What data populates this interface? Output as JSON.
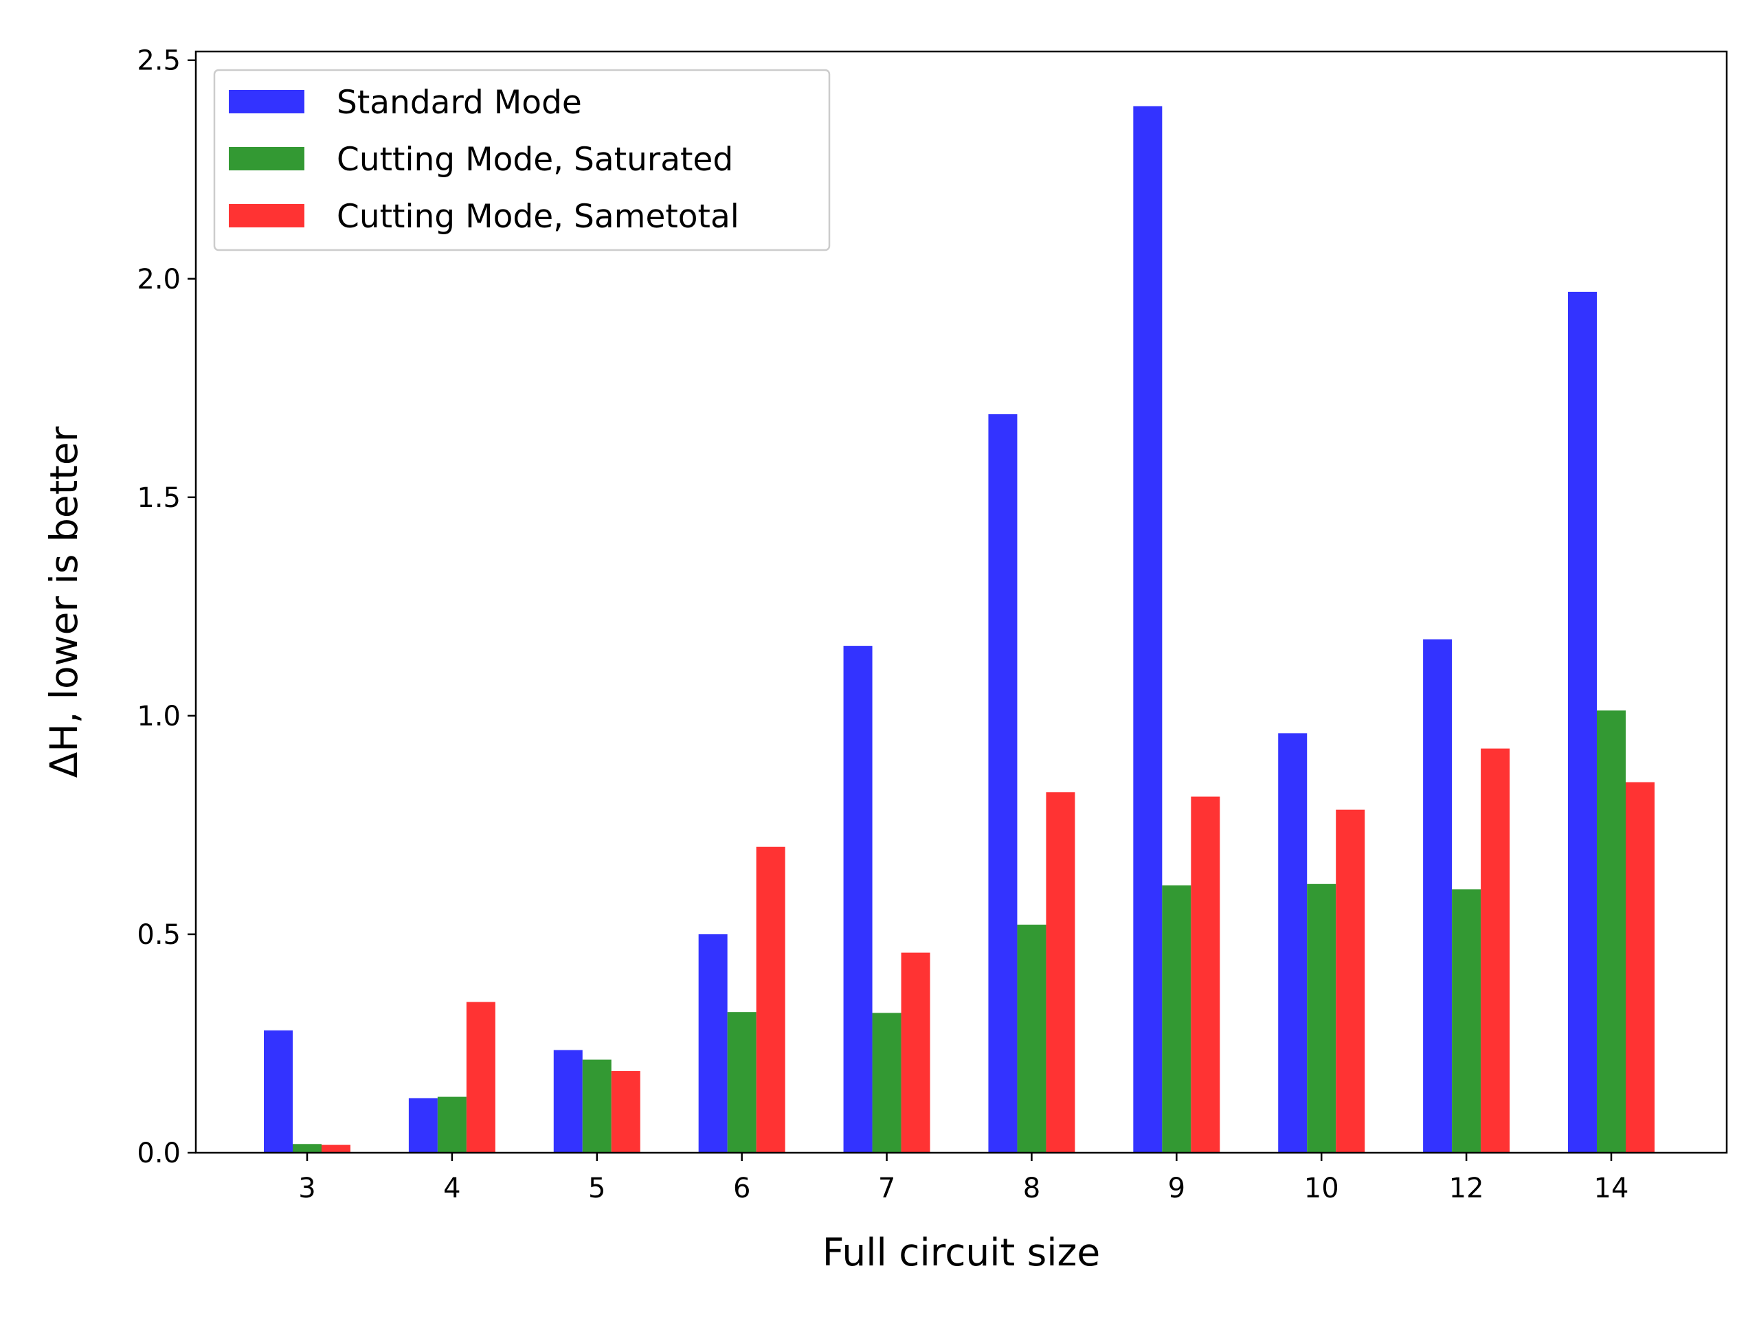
{
  "chart_data": {
    "type": "bar",
    "categories": [
      "3",
      "4",
      "5",
      "6",
      "7",
      "8",
      "9",
      "10",
      "12",
      "14"
    ],
    "series": [
      {
        "name": "Standard Mode",
        "color": "#3333ff",
        "values": [
          0.28,
          0.125,
          0.235,
          0.5,
          1.16,
          1.69,
          2.395,
          0.96,
          1.175,
          1.97
        ]
      },
      {
        "name": "Cutting Mode, Saturated",
        "color": "#339933",
        "values": [
          0.02,
          0.128,
          0.213,
          0.322,
          0.32,
          0.522,
          0.612,
          0.615,
          0.603,
          1.012
        ]
      },
      {
        "name": "Cutting Mode, Sametotal",
        "color": "#ff3333",
        "values": [
          0.018,
          0.345,
          0.187,
          0.7,
          0.458,
          0.825,
          0.815,
          0.785,
          0.925,
          0.848
        ]
      }
    ],
    "xlabel": "Full circuit size",
    "ylabel": "ΔH, lower is better",
    "ylim": [
      0,
      2.52
    ],
    "yticks": [
      "0.0",
      "0.5",
      "1.0",
      "1.5",
      "2.0",
      "2.5"
    ],
    "grid": false,
    "legend_position": "top-left"
  }
}
